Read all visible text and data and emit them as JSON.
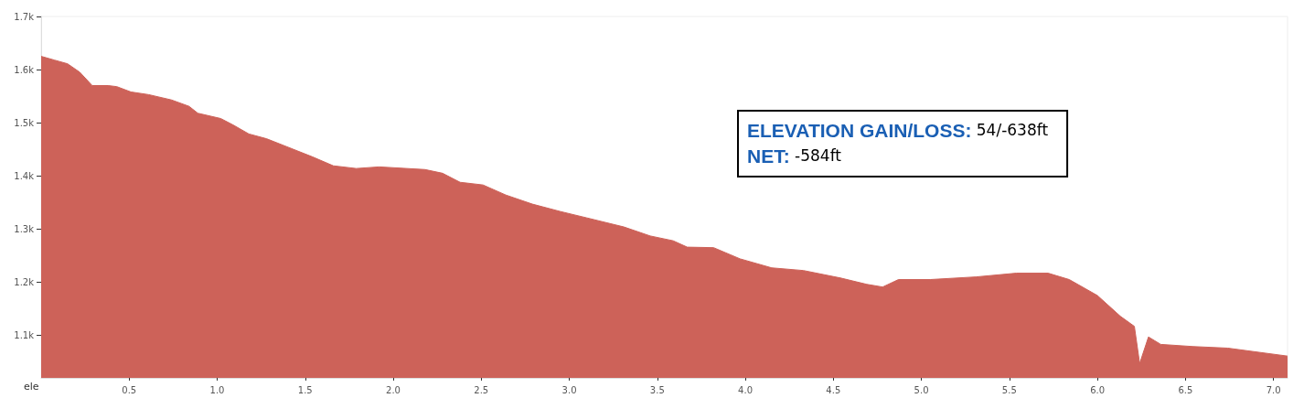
{
  "chart_data": {
    "type": "area",
    "ylabel": "ele",
    "annotations": [
      "ELEVATION GAIN/LOSS: 54/-638ft",
      "NET: -584ft"
    ],
    "x": [
      0,
      0.075,
      0.15,
      0.22,
      0.29,
      0.38,
      0.43,
      0.51,
      0.61,
      0.74,
      0.84,
      0.89,
      1.02,
      1.09,
      1.18,
      1.28,
      1.38,
      1.54,
      1.66,
      1.79,
      1.92,
      2.18,
      2.28,
      2.38,
      2.51,
      2.64,
      2.79,
      2.95,
      3.1,
      3.31,
      3.46,
      3.59,
      3.67,
      3.82,
      3.97,
      4.15,
      4.33,
      4.54,
      4.69,
      4.78,
      4.87,
      5.05,
      5.31,
      5.54,
      5.72,
      5.84,
      6.0,
      6.13,
      6.21,
      6.24,
      6.29,
      6.36,
      6.54,
      6.74,
      7.08
    ],
    "series": [
      {
        "color": "#cd6259",
        "values": [
          1625,
          1618,
          1611,
          1595,
          1570,
          1570,
          1568,
          1558,
          1553,
          1543,
          1531,
          1518,
          1508,
          1496,
          1479,
          1470,
          1457,
          1436,
          1419,
          1414,
          1417,
          1412,
          1405,
          1388,
          1383,
          1364,
          1347,
          1333,
          1321,
          1304,
          1287,
          1278,
          1266,
          1265,
          1244,
          1227,
          1222,
          1208,
          1196,
          1191,
          1205,
          1205,
          1210,
          1217,
          1217,
          1205,
          1175,
          1136,
          1117,
          1047,
          1097,
          1083,
          1079,
          1076,
          1061
        ]
      }
    ],
    "xlim": [
      0,
      7.08
    ],
    "xticks": [
      0.5,
      {
        "value": 1,
        "label": "1.0"
      },
      1.5,
      {
        "value": 2,
        "label": "2.0"
      },
      2.5,
      {
        "value": 3,
        "label": "3.0"
      },
      3.5,
      {
        "value": 4,
        "label": "4.0"
      },
      4.5,
      {
        "value": 5,
        "label": "5.0"
      },
      5.5,
      {
        "value": 6,
        "label": "6.0"
      },
      6.5,
      {
        "value": 7,
        "label": "7.0"
      }
    ],
    "ylim": [
      1020,
      1700
    ],
    "yticks": [
      {
        "value": 1100,
        "label": "1.1k"
      },
      {
        "value": 1200,
        "label": "1.2k"
      },
      {
        "value": 1300,
        "label": "1.3k"
      },
      {
        "value": 1400,
        "label": "1.4k"
      },
      {
        "value": 1500,
        "label": "1.5k"
      },
      {
        "value": 1600,
        "label": "1.6k"
      },
      {
        "value": 1700,
        "label": "1.7k"
      }
    ],
    "grid": false
  }
}
